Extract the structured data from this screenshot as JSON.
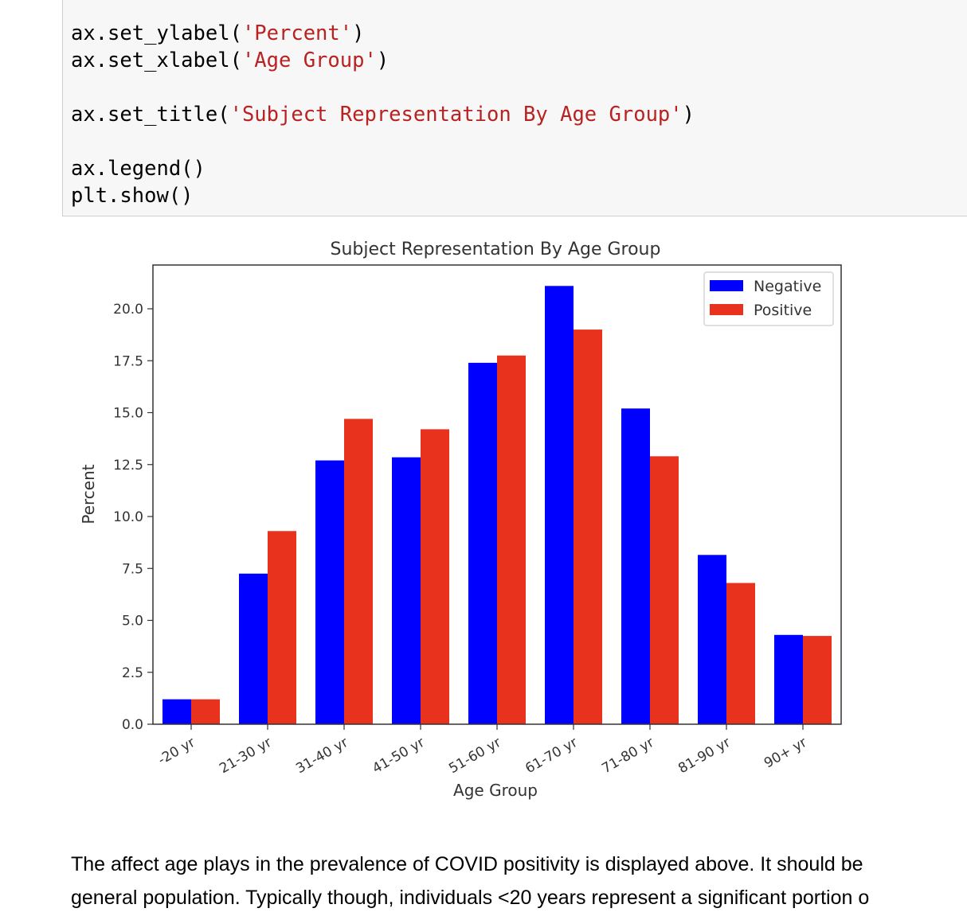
{
  "code_cell": {
    "lines": [
      {
        "pre": "ax.set_ylabel(",
        "str": "'Percent'",
        "post": ")"
      },
      {
        "pre": "ax.set_xlabel(",
        "str": "'Age Group'",
        "post": ")"
      },
      {
        "pre": "",
        "str": "",
        "post": ""
      },
      {
        "pre": "ax.set_title(",
        "str": "'Subject Representation By Age Group'",
        "post": ")"
      },
      {
        "pre": "",
        "str": "",
        "post": ""
      },
      {
        "pre": "ax.legend()",
        "str": "",
        "post": ""
      },
      {
        "pre": "plt.show()",
        "str": "",
        "post": ""
      }
    ]
  },
  "chart_data": {
    "type": "bar",
    "title": "Subject Representation By Age Group",
    "xlabel": "Age Group",
    "ylabel": "Percent",
    "categories": [
      "-20 yr",
      "21-30 yr",
      "31-40 yr",
      "41-50 yr",
      "51-60 yr",
      "61-70 yr",
      "71-80 yr",
      "81-90 yr",
      "90+ yr"
    ],
    "series": [
      {
        "name": "Negative",
        "color": "#0000ff",
        "values": [
          1.2,
          7.25,
          12.7,
          12.85,
          17.4,
          21.1,
          15.2,
          8.15,
          4.3
        ]
      },
      {
        "name": "Positive",
        "color": "#e8321e",
        "values": [
          1.2,
          9.3,
          14.7,
          14.2,
          17.75,
          19.0,
          12.9,
          6.8,
          4.25
        ]
      }
    ],
    "ylim": [
      0,
      21.8
    ],
    "yticks": [
      "0.0",
      "2.5",
      "5.0",
      "7.5",
      "10.0",
      "12.5",
      "15.0",
      "17.5",
      "20.0"
    ],
    "legend": "top-right",
    "grid": false
  },
  "prose": {
    "line1": "The affect age plays in the prevalence of COVID positivity is displayed above. It should be",
    "line2": "general population. Typically though, individuals <20 years represent a significant portion o"
  }
}
